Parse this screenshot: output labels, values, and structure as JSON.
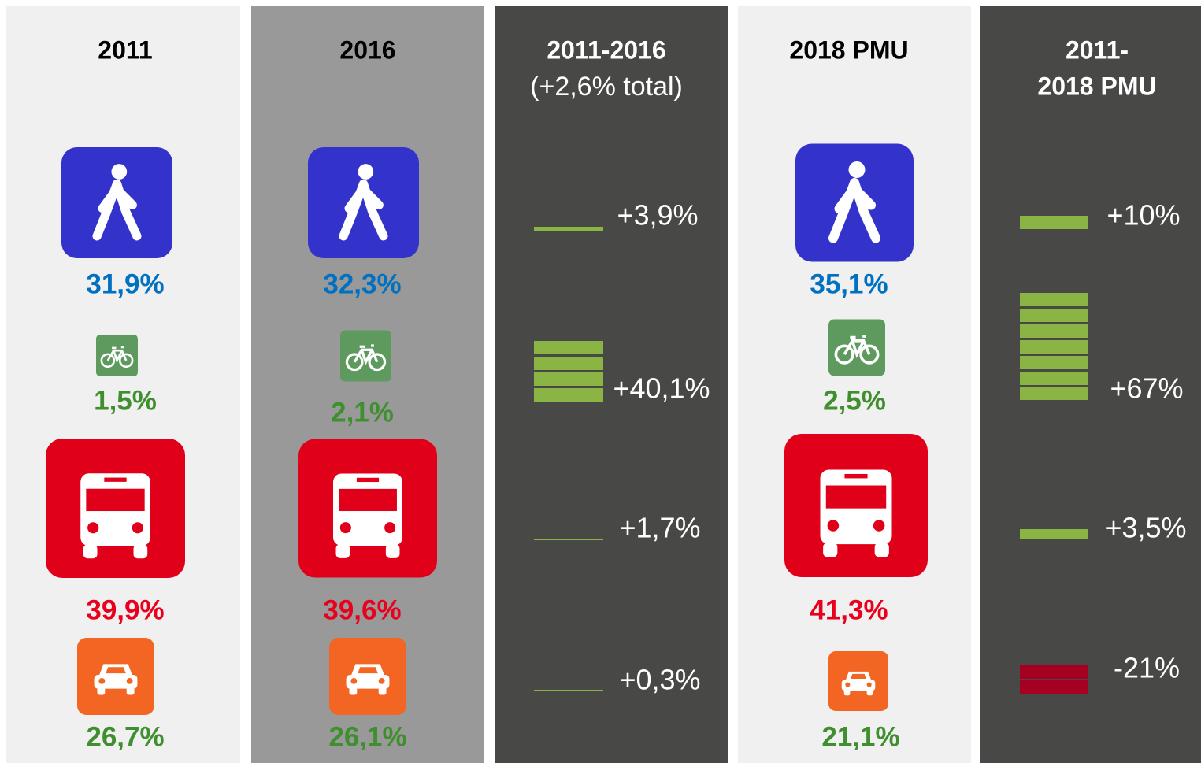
{
  "columns": [
    {
      "title": "2011",
      "modes": [
        "31,9%",
        "1,5%",
        "39,9%",
        "26,7%"
      ]
    },
    {
      "title": "2016",
      "modes": [
        "32,3%",
        "2,1%",
        "39,6%",
        "26,1%"
      ]
    },
    {
      "title": "2011-2016",
      "subtitle": "(+2,6% total)",
      "changes": [
        "+3,9%",
        "+40,1%",
        "+1,7%",
        "+0,3%"
      ]
    },
    {
      "title": "2018 PMU",
      "modes": [
        "35,1%",
        "2,5%",
        "41,3%",
        "21,1%"
      ]
    },
    {
      "title_lines": [
        "2011-",
        "2018 PMU"
      ],
      "changes": [
        "+10%",
        "+67%",
        "+3,5%",
        "-21%"
      ]
    }
  ]
}
